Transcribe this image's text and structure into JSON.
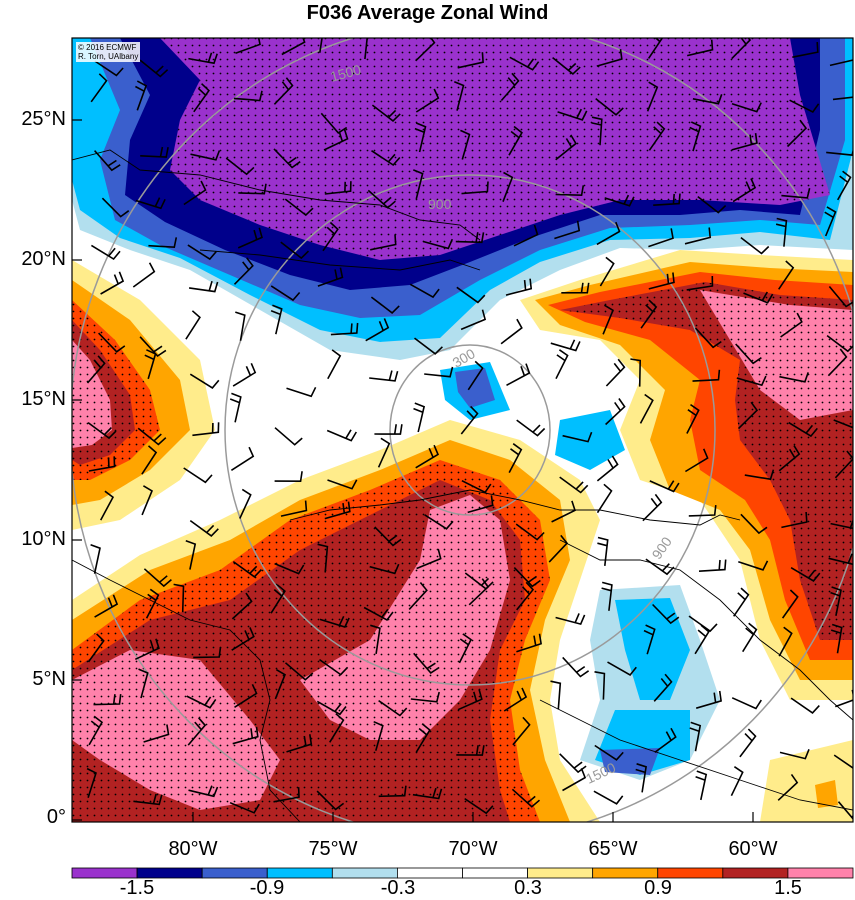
{
  "title": "F036 Average Zonal Wind",
  "credit": {
    "line1": "© 2016 ECMWF",
    "line2": "R. Torn, UAlbany"
  },
  "y_axis_labels": [
    "25°N",
    "20°N",
    "15°N",
    "10°N",
    "5°N",
    "0°"
  ],
  "x_axis_labels": [
    "80°W",
    "75°W",
    "70°W",
    "65°W",
    "60°W"
  ],
  "range_ring_labels": [
    "300",
    "900",
    "1500"
  ],
  "colorbar": {
    "labels": [
      "-1.5",
      "-0.9",
      "-0.3",
      "0.3",
      "0.9",
      "1.5"
    ],
    "colors": [
      "#9a32cd",
      "#00008b",
      "#3a5fcd",
      "#00bfff",
      "#b2dfee",
      "#ffffff",
      "#ffffff",
      "#ffec8b",
      "#ffa500",
      "#ff4500",
      "#b22222",
      "#ff82ab"
    ]
  },
  "map_extent": {
    "lon_range": [
      -85,
      -56.8
    ],
    "lat_range": [
      0,
      27
    ]
  },
  "colors": {
    "ring": "#9a9a9a",
    "coast": "#000000",
    "stipple": "#000000"
  }
}
